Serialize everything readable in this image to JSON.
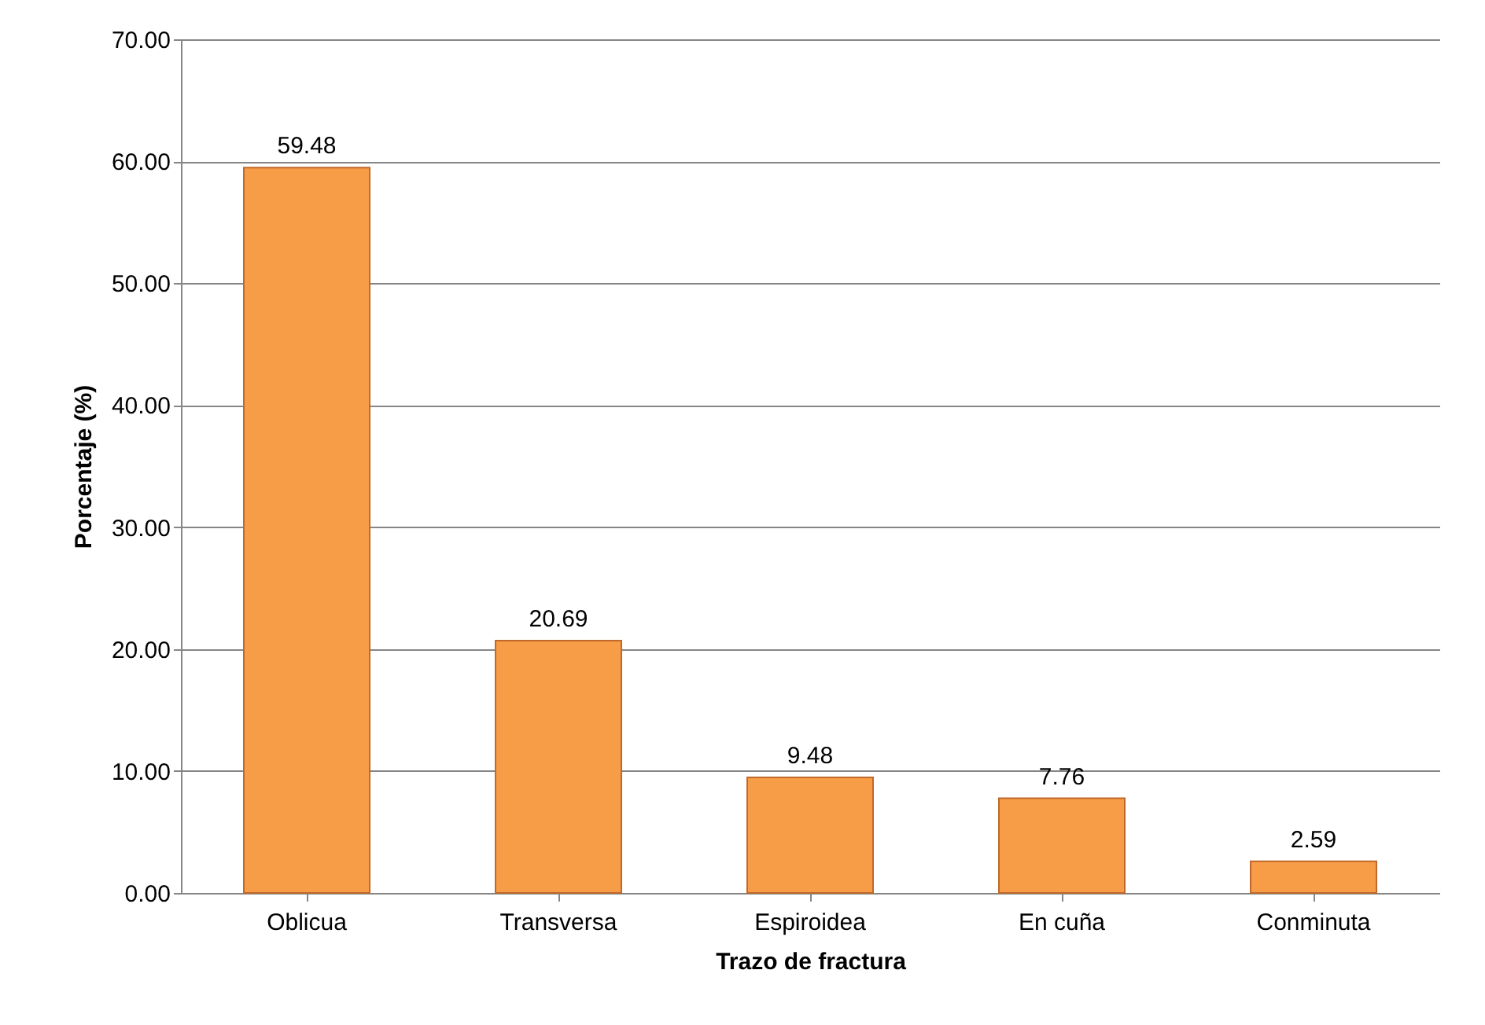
{
  "chart_data": {
    "type": "bar",
    "xlabel": "Trazo de  fractura",
    "ylabel": "Porcentaje (%)",
    "categories": [
      "Oblicua",
      "Transversa",
      "Espiroidea",
      "En cuña",
      "Conminuta"
    ],
    "values": [
      59.48,
      20.69,
      9.48,
      7.76,
      2.59
    ],
    "color": "#f79c47",
    "ylim": [
      0,
      70
    ],
    "yticks": [
      {
        "value": 0,
        "label": "0.00"
      },
      {
        "value": 10,
        "label": "10.00"
      },
      {
        "value": 20,
        "label": "20.00"
      },
      {
        "value": 30,
        "label": "30.00"
      },
      {
        "value": 40,
        "label": "40.00"
      },
      {
        "value": 50,
        "label": "50.00"
      },
      {
        "value": 60,
        "label": "60.00"
      },
      {
        "value": 70,
        "label": "70.00"
      }
    ],
    "grid": "y",
    "data_labels": true
  }
}
